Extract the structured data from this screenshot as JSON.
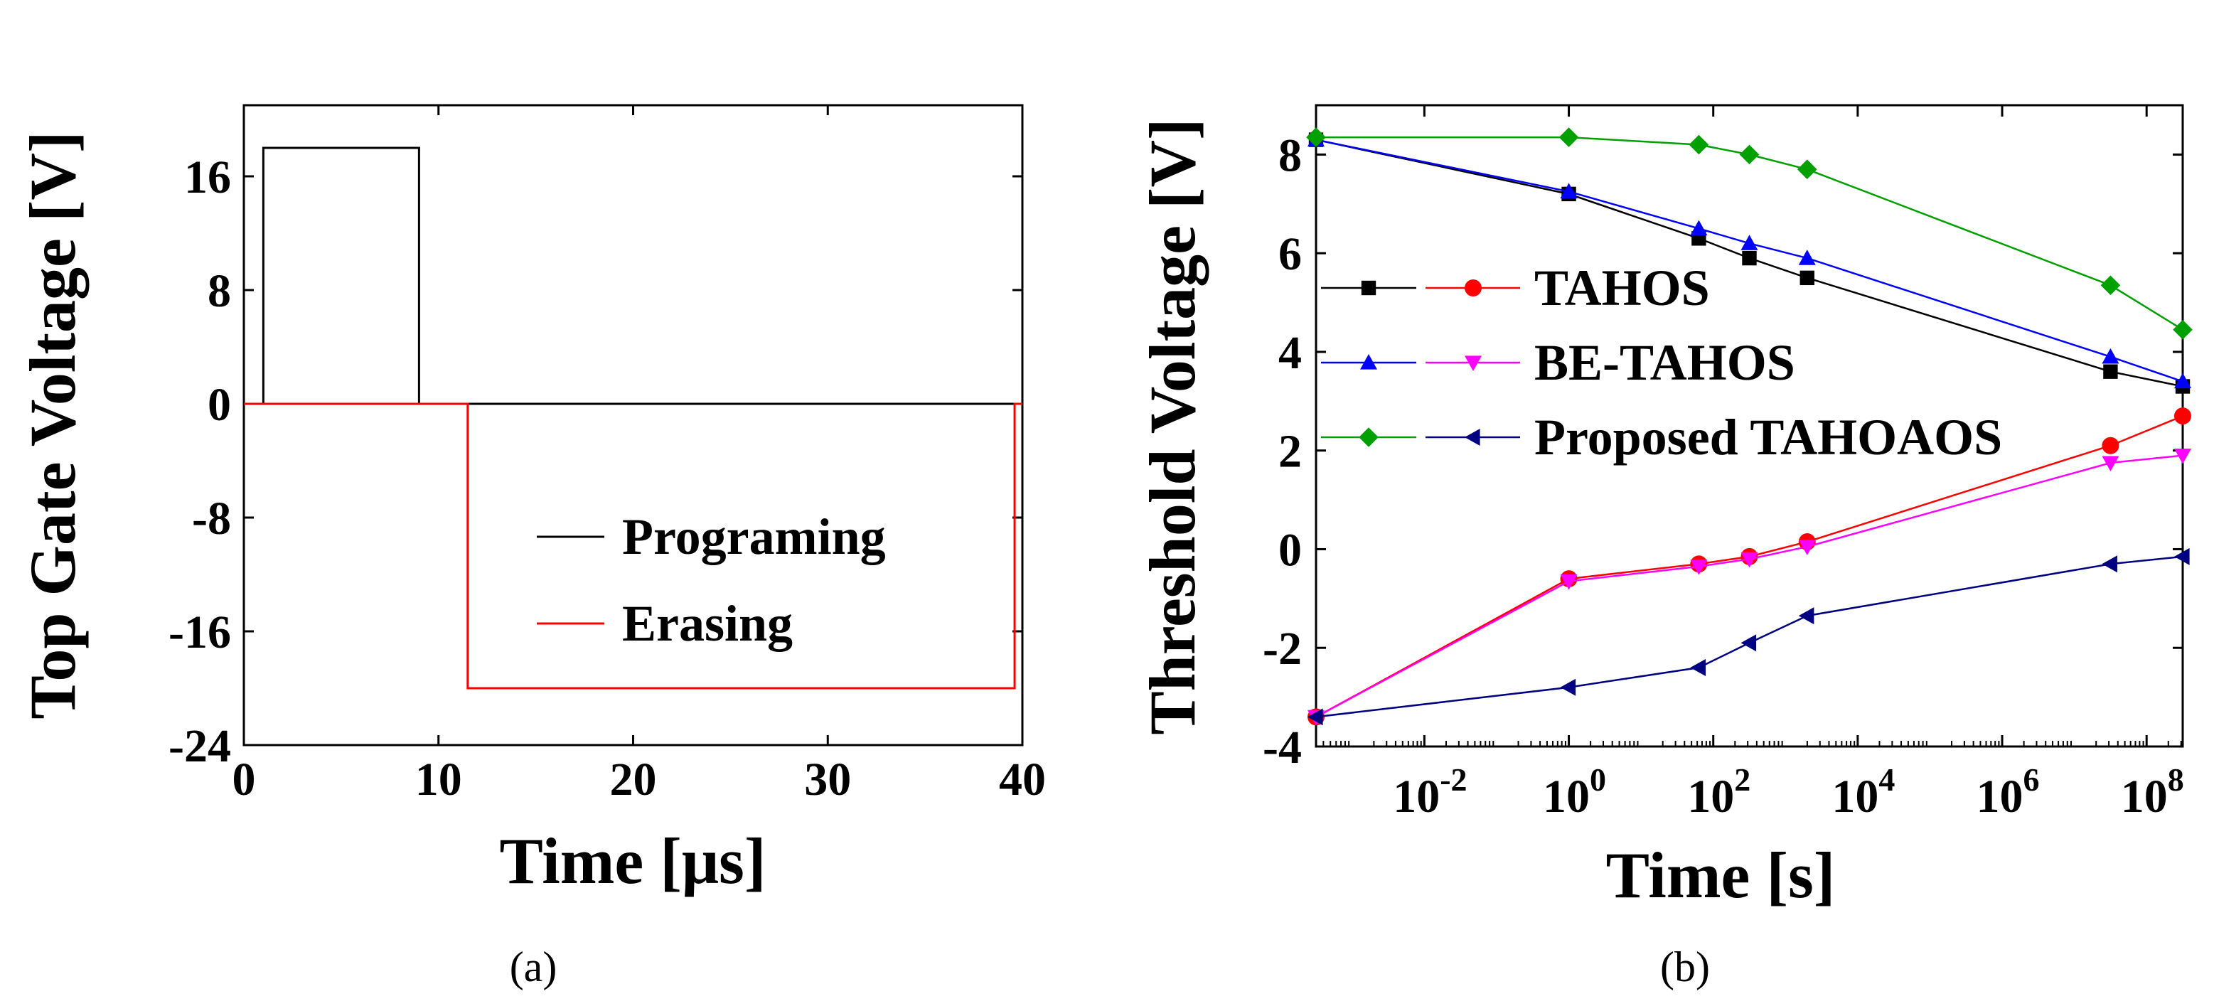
{
  "chart_data": [
    {
      "type": "line",
      "panel": "(a)",
      "xlabel": "Time [μs]",
      "ylabel": "Top Gate Voltage [V]",
      "xlim": [
        0,
        40
      ],
      "ylim": [
        -24,
        21
      ],
      "xticks": [
        0,
        10,
        20,
        30,
        40
      ],
      "yticks": [
        16,
        8,
        0,
        -8,
        -16,
        -24
      ],
      "xtick_labels": [
        "0",
        "10",
        "20",
        "30",
        "40"
      ],
      "ytick_labels": [
        "16",
        "8",
        "0",
        "-8",
        "-16",
        "-24"
      ],
      "legend_position": "lower-right",
      "series": [
        {
          "name": "Programing",
          "color": "#000000",
          "x": [
            0,
            1,
            1,
            9,
            9,
            40
          ],
          "y": [
            0,
            0,
            18,
            18,
            0,
            0
          ]
        },
        {
          "name": "Erasing",
          "color": "#ff0000",
          "x": [
            0,
            11.5,
            11.5,
            39.6,
            39.6,
            40
          ],
          "y": [
            0,
            0,
            -20,
            -20,
            0,
            0
          ]
        }
      ]
    },
    {
      "type": "line",
      "panel": "(b)",
      "xscale": "log",
      "xlabel": "Time [s]",
      "ylabel": "Threshold Voltage [V]",
      "xlim_log10": [
        -3.5,
        8.5
      ],
      "ylim": [
        -4,
        9
      ],
      "xticks_log10": [
        -2,
        0,
        2,
        4,
        6,
        8
      ],
      "xtick_labels": [
        "10-2",
        "100",
        "102",
        "104",
        "106",
        "108"
      ],
      "xtick_base": "10",
      "xtick_exponents": [
        "-2",
        "0",
        "2",
        "4",
        "6",
        "8"
      ],
      "yticks": [
        8,
        6,
        4,
        2,
        0,
        -2,
        -4
      ],
      "ytick_labels": [
        "8",
        "6",
        "4",
        "2",
        "0",
        "-2",
        "-4"
      ],
      "legend": [
        {
          "label": "TAHOS",
          "series": [
            "TAHOS-P",
            "TAHOS-E"
          ]
        },
        {
          "label": "BE-TAHOS",
          "series": [
            "BE-TAHOS-P",
            "BE-TAHOS-E"
          ]
        },
        {
          "label": "Proposed TAHOAOS",
          "series": [
            "Proposed TAHOAOS-P",
            "Proposed TAHOAOS-E"
          ]
        }
      ],
      "legend_position": "middle-left",
      "series": [
        {
          "name": "TAHOS-P",
          "color": "#000000",
          "marker": "square",
          "x_log10": [
            -3.5,
            0,
            1.8,
            2.5,
            3.3,
            7.5,
            8.5
          ],
          "y": [
            8.3,
            7.2,
            6.3,
            5.9,
            5.5,
            3.6,
            3.3
          ]
        },
        {
          "name": "TAHOS-E",
          "color": "#ff0000",
          "marker": "circle",
          "x_log10": [
            -3.5,
            0,
            1.8,
            2.5,
            3.3,
            7.5,
            8.5
          ],
          "y": [
            -3.4,
            -0.6,
            -0.3,
            -0.15,
            0.15,
            2.1,
            2.7
          ]
        },
        {
          "name": "BE-TAHOS-P",
          "color": "#0000ff",
          "marker": "triangle-up",
          "x_log10": [
            -3.5,
            0,
            1.8,
            2.5,
            3.3,
            7.5,
            8.5
          ],
          "y": [
            8.3,
            7.25,
            6.5,
            6.2,
            5.9,
            3.9,
            3.4
          ]
        },
        {
          "name": "BE-TAHOS-E",
          "color": "#ff00ff",
          "marker": "triangle-down",
          "x_log10": [
            -3.5,
            0,
            1.8,
            2.5,
            3.3,
            7.5,
            8.5
          ],
          "y": [
            -3.4,
            -0.65,
            -0.35,
            -0.2,
            0.05,
            1.75,
            1.9
          ]
        },
        {
          "name": "Proposed TAHOAOS-P",
          "color": "#00a000",
          "marker": "diamond",
          "x_log10": [
            -3.5,
            0,
            1.8,
            2.5,
            3.3,
            7.5,
            8.5
          ],
          "y": [
            8.35,
            8.35,
            8.2,
            8.0,
            7.7,
            5.35,
            4.45
          ]
        },
        {
          "name": "Proposed TAHOAOS-E",
          "color": "#000080",
          "marker": "triangle-left",
          "x_log10": [
            -3.5,
            0,
            1.8,
            2.5,
            3.3,
            7.5,
            8.5
          ],
          "y": [
            -3.4,
            -2.8,
            -2.4,
            -1.9,
            -1.35,
            -0.3,
            -0.15
          ]
        }
      ]
    }
  ]
}
